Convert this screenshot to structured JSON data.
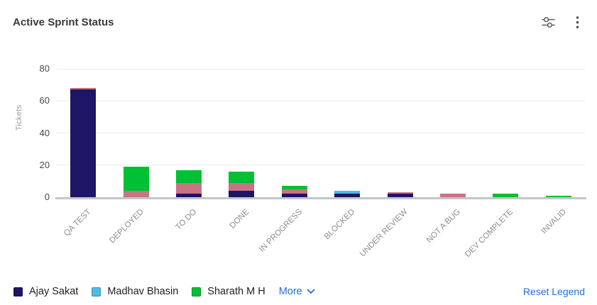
{
  "header": {
    "title": "Active Sprint Status"
  },
  "toolbar": {
    "settings_icon": "sliders-icon",
    "menu_icon": "kebab-menu-icon"
  },
  "chart_data": {
    "type": "bar",
    "stacked": true,
    "title": "Active Sprint Status",
    "xlabel": "",
    "ylabel": "Tickets",
    "ylim": [
      0,
      80
    ],
    "yticks": [
      0,
      20,
      40,
      60,
      80
    ],
    "grid": "horizontal",
    "legend_position": "bottom",
    "categories": [
      "QA TEST",
      "DEPLOYED",
      "TO DO",
      "DONE",
      "IN PROGRESS",
      "BLOCKED",
      "UNDER REVIEW",
      "NOT A BUG",
      "DEV COMPLETE",
      "INVALID"
    ],
    "series": [
      {
        "name": "Ajay Sakat",
        "color": "#1f1566",
        "values": [
          67,
          0,
          2,
          4,
          2,
          2,
          2,
          0,
          0,
          0
        ]
      },
      {
        "name": "",
        "color": "#c97482",
        "values": [
          1,
          4,
          7,
          5,
          3,
          0,
          1,
          2,
          0,
          0
        ]
      },
      {
        "name": "Madhav Bhasin",
        "color": "#4fbae4",
        "values": [
          0,
          0,
          0,
          0,
          0,
          2,
          0,
          0,
          0,
          0
        ]
      },
      {
        "name": "Sharath M H",
        "color": "#00c033",
        "values": [
          0,
          15,
          8,
          7,
          2,
          0,
          0,
          0,
          2,
          1
        ]
      }
    ],
    "totals": [
      68,
      19,
      17,
      16,
      7,
      4,
      3,
      2,
      2,
      1
    ]
  },
  "legend": {
    "items": [
      {
        "label": "Ajay Sakat",
        "color": "#1f1566"
      },
      {
        "label": "Madhav Bhasin",
        "color": "#4fbae4"
      },
      {
        "label": "Sharath M H",
        "color": "#00c033"
      }
    ],
    "more_label": "More",
    "reset_label": "Reset Legend"
  },
  "colors": {
    "link": "#1f6fdb",
    "axis_tick_text": "#46484d",
    "category_text": "#8d8d8d",
    "y_axis_title_text": "#9b9b9b",
    "gridline": "#eaeaea",
    "baseline": "#c3c6cd",
    "title_text": "#3a3a3a",
    "icon": "#5f5f5f"
  }
}
